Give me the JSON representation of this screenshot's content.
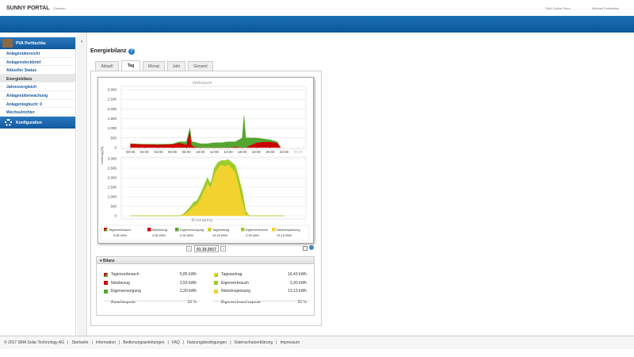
{
  "header": {
    "logo": "SUNNY PORTAL",
    "language": "Deutsch",
    "store": "SMA Online Store",
    "user": "Michael Perlitschke"
  },
  "sidebar": {
    "plant": "PVA Perlitschke",
    "items": [
      "Anlagenübersicht",
      "Anlagensteckbrief",
      "Aktueller Status",
      "Energiebilanz",
      "Jahresvergleich",
      "Anlagenüberwachung",
      "Anlagenlogbuch: 0",
      "Wechselrichter"
    ],
    "active": 3,
    "config": "Konfiguration"
  },
  "page": {
    "title": "Energiebilanz",
    "tabs": [
      "Aktuell",
      "Tag",
      "Monat",
      "Jahr",
      "Gesamt"
    ],
    "active_tab": 1,
    "date": "01.10.2017"
  },
  "charts": [
    {
      "type": "area",
      "title": "Verbrauch",
      "ylabel": "Leistung [W]",
      "xlim": [
        -1.1,
        25
      ],
      "ylim": [
        0,
        3000
      ],
      "yticks": [
        0,
        500,
        {
          "value": 1000,
          "label": "1.000"
        },
        {
          "value": 1500,
          "label": "1.500"
        },
        {
          "value": 2000,
          "label": "2.000"
        },
        {
          "value": 2500,
          "label": "2.500"
        },
        {
          "value": 3000,
          "label": "3.000"
        }
      ],
      "xticks": [
        {
          "value": 0,
          "label": "00:00"
        },
        {
          "value": 2,
          "label": "02:00"
        },
        {
          "value": 4,
          "label": "04:00"
        },
        {
          "value": 6,
          "label": "06:00"
        },
        {
          "value": 8,
          "label": "08:00"
        },
        {
          "value": 10,
          "label": "10:00"
        },
        {
          "value": 12,
          "label": "12:00"
        },
        {
          "value": 14,
          "label": "14:00"
        },
        {
          "value": 16,
          "label": "16:00"
        },
        {
          "value": 18,
          "label": "18:00"
        },
        {
          "value": 20,
          "label": "20:00"
        },
        {
          "value": 22,
          "label": "22:00"
        },
        {
          "value": 24,
          "label": "00:00"
        }
      ],
      "x": [
        0,
        1,
        2,
        3,
        4,
        5,
        6,
        7,
        8,
        8.5,
        8.75,
        9,
        10,
        11,
        12,
        13,
        14,
        15,
        16,
        16.25,
        16.5,
        17,
        18,
        19,
        20,
        21,
        21.5
      ],
      "series": [
        {
          "name": "Netzbezug",
          "color": "#cc0000",
          "values": [
            200,
            180,
            170,
            170,
            160,
            170,
            180,
            250,
            150,
            900,
            150,
            50,
            0,
            0,
            0,
            0,
            0,
            50,
            0,
            0,
            0,
            100,
            250,
            300,
            300,
            250,
            0
          ]
        },
        {
          "name": "Eigenversorgung",
          "color": "#55a630",
          "values": [
            0,
            0,
            0,
            0,
            0,
            0,
            0,
            50,
            150,
            100,
            150,
            250,
            200,
            200,
            250,
            250,
            300,
            250,
            500,
            1650,
            500,
            400,
            250,
            150,
            100,
            50,
            0
          ]
        }
      ]
    },
    {
      "type": "area",
      "title": "Erzeugung",
      "xlim": [
        -1.1,
        25
      ],
      "ylim": [
        0,
        3000
      ],
      "yticks": [
        0,
        500,
        {
          "value": 1000,
          "label": "1.000"
        },
        {
          "value": 1500,
          "label": "1.500"
        },
        {
          "value": 2000,
          "label": "2.000"
        },
        {
          "value": 2500,
          "label": "2.500"
        },
        {
          "value": 3000,
          "label": "3.000"
        }
      ],
      "x": [
        0,
        7,
        7.5,
        8,
        8.5,
        9,
        9.5,
        10,
        10.5,
        11,
        11.5,
        12,
        12.5,
        13,
        13.5,
        14,
        14.5,
        15,
        15.5,
        16,
        16.5,
        17,
        22
      ],
      "series": [
        {
          "name": "Netzeinspeisung",
          "color": "#f2d22e",
          "values": [
            0,
            0,
            50,
            150,
            300,
            500,
            600,
            900,
            1300,
            1700,
            1500,
            2200,
            2500,
            2700,
            2600,
            2700,
            2500,
            2300,
            1600,
            800,
            100,
            0,
            0
          ]
        },
        {
          "name": "Eigenverbrauch",
          "color": "#9ccc2a",
          "values": [
            0,
            0,
            20,
            100,
            150,
            200,
            200,
            250,
            250,
            300,
            200,
            300,
            300,
            200,
            300,
            250,
            300,
            350,
            400,
            500,
            150,
            0,
            0
          ]
        }
      ]
    }
  ],
  "legend": [
    {
      "label": "Tagesverbrauch",
      "value": "5,85 kWh",
      "colors": [
        "#cc0000",
        "#55a630"
      ]
    },
    {
      "label": "Netzbezug",
      "value": "2,55 kWh",
      "colors": [
        "#cc0000"
      ]
    },
    {
      "label": "Eigenversorgung",
      "value": "3,30 kWh",
      "colors": [
        "#55a630"
      ]
    },
    {
      "label": "Tagesertrag",
      "value": "16,43 kWh",
      "colors": [
        "#f2d22e",
        "#9ccc2a"
      ]
    },
    {
      "label": "Eigenverbrauch",
      "value": "3,30 kWh",
      "colors": [
        "#9ccc2a"
      ]
    },
    {
      "label": "Netzeinspeisung",
      "value": "13,13 kWh",
      "colors": [
        "#f2d22e"
      ]
    }
  ],
  "bilanz": {
    "title": "Bilanz",
    "left": [
      {
        "label": "Tagesverbrauch",
        "value": "5,85 kWh"
      },
      {
        "label": "Netzbezug",
        "value": "2,55 kWh"
      },
      {
        "label": "Eigenversorgung",
        "value": "3,30 kWh"
      },
      {
        "label": "Autarkiequote",
        "value": "56 %"
      }
    ],
    "right": [
      {
        "label": "Tagesertrag",
        "value": "16,43 kWh"
      },
      {
        "label": "Eigenverbrauch",
        "value": "3,30 kWh"
      },
      {
        "label": "Netzeinspeisung",
        "value": "13,13 kWh"
      },
      {
        "label": "Eigenverbrauchsquote",
        "value": "20 %"
      }
    ]
  },
  "footer": {
    "copyright": "© 2017 SMA Solar Technology AG",
    "links": [
      "Startseite",
      "Information",
      "Bedienungsanleitungen",
      "FAQ",
      "Nutzungsbedingungen",
      "Datenschutzerklärung",
      "Impressum"
    ]
  }
}
